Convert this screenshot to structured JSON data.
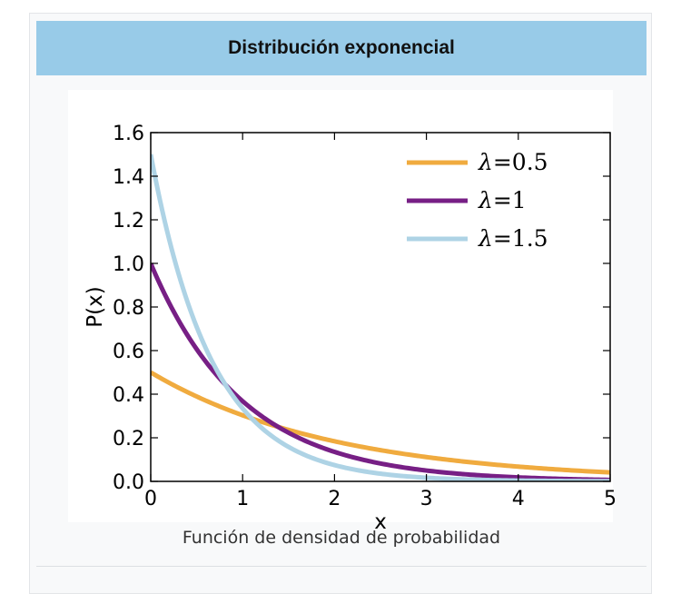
{
  "infobox": {
    "title": "Distribución exponencial",
    "caption": "Función de densidad de probabilidad"
  },
  "chart_data": {
    "type": "line",
    "title": "",
    "xlabel": "x",
    "ylabel": "P(x)",
    "xlim": [
      0,
      5
    ],
    "ylim": [
      0,
      1.6
    ],
    "x_ticks": [
      "0",
      "1",
      "2",
      "3",
      "4",
      "5"
    ],
    "y_ticks": [
      "0.0",
      "0.2",
      "0.4",
      "0.6",
      "0.8",
      "1.0",
      "1.2",
      "1.4",
      "1.6"
    ],
    "grid": false,
    "legend_position": "top-right",
    "series": [
      {
        "lambda_symbol": "λ",
        "lambda_value": "=0.5",
        "rate": 0.5,
        "color": "#f0ab3f",
        "x": [
          0,
          0.5,
          1,
          1.5,
          2,
          2.5,
          3,
          3.5,
          4,
          4.5,
          5
        ],
        "y": [
          0.5,
          0.389,
          0.303,
          0.236,
          0.184,
          0.143,
          0.112,
          0.087,
          0.068,
          0.053,
          0.041
        ]
      },
      {
        "lambda_symbol": "λ",
        "lambda_value": "=1",
        "rate": 1,
        "color": "#771f85",
        "x": [
          0,
          0.5,
          1,
          1.5,
          2,
          2.5,
          3,
          3.5,
          4,
          4.5,
          5
        ],
        "y": [
          1.0,
          0.607,
          0.368,
          0.223,
          0.135,
          0.082,
          0.05,
          0.03,
          0.018,
          0.011,
          0.007
        ]
      },
      {
        "lambda_symbol": "λ",
        "lambda_value": "=1.5",
        "rate": 1.5,
        "color": "#aed3e5",
        "x": [
          0,
          0.5,
          1,
          1.5,
          2,
          2.5,
          3,
          3.5,
          4,
          4.5,
          5
        ],
        "y": [
          1.5,
          0.708,
          0.335,
          0.158,
          0.075,
          0.035,
          0.017,
          0.008,
          0.004,
          0.002,
          0.001
        ]
      }
    ]
  }
}
